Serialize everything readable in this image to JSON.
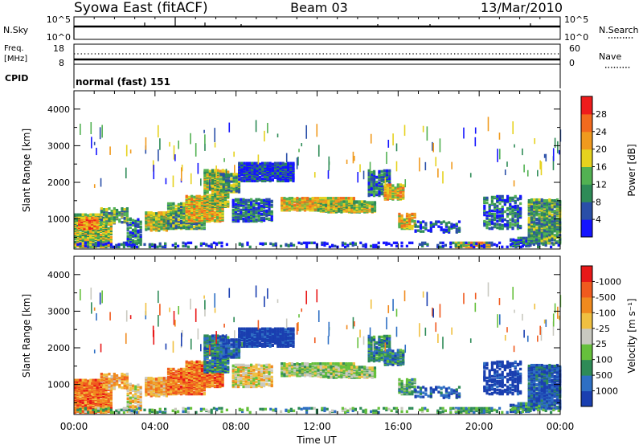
{
  "header": {
    "title": "Syowa East (fitACF)",
    "beam": "Beam 03",
    "date": "13/Mar/2010"
  },
  "strip_panels": {
    "nsky_label": "N.Sky",
    "nsky_ticks": [
      "10^5",
      "10^0"
    ],
    "nsearch_label": "N.Search",
    "nsearch_ticks": [
      "10^5",
      "10^0"
    ],
    "freq_label_1": "Freq.",
    "freq_label_2": "[MHz]",
    "freq_ticks": [
      "18",
      "8"
    ],
    "nave_label": "Nave",
    "nave_ticks": [
      "60",
      "0"
    ],
    "cpid_label": "CPID",
    "cpid_value": "normal (fast) 151"
  },
  "x_axis": {
    "title": "Time UT",
    "ticks": [
      "00:00",
      "04:00",
      "08:00",
      "12:00",
      "16:00",
      "20:00",
      "00:00"
    ]
  },
  "chart_data": [
    {
      "type": "heatmap",
      "quantity": "Power",
      "xlabel": "Time UT",
      "ylabel": "Slant Range [km]",
      "ylim": [
        180,
        4500
      ],
      "yticks": [
        "1000",
        "2000",
        "3000",
        "4000"
      ],
      "colorbar_label": "Power [dB]",
      "colorbar_ticks": [
        "4",
        "8",
        "12",
        "16",
        "20",
        "24",
        "28"
      ],
      "colorbar_colors": [
        "#1414ff",
        "#2a4fa8",
        "#2e8b57",
        "#52b152",
        "#e6d21e",
        "#f09a1e",
        "#f26a1e",
        "#ee1c1c"
      ]
    },
    {
      "type": "heatmap",
      "quantity": "Velocity",
      "xlabel": "Time UT",
      "ylabel": "Slant Range [km]",
      "ylim": [
        180,
        4500
      ],
      "yticks": [
        "1000",
        "2000",
        "3000",
        "4000"
      ],
      "colorbar_label": "Velocity  [m s⁻¹]",
      "colorbar_ticks": [
        "1000",
        "500",
        "100",
        "25",
        "-25",
        "-100",
        "-500",
        "-1000"
      ],
      "colorbar_colors": [
        "#1a3fb0",
        "#2e6fc4",
        "#2e8b57",
        "#66c03c",
        "#c9c9c0",
        "#f0c040",
        "#f08a1e",
        "#f05a1e",
        "#e81818"
      ]
    }
  ]
}
